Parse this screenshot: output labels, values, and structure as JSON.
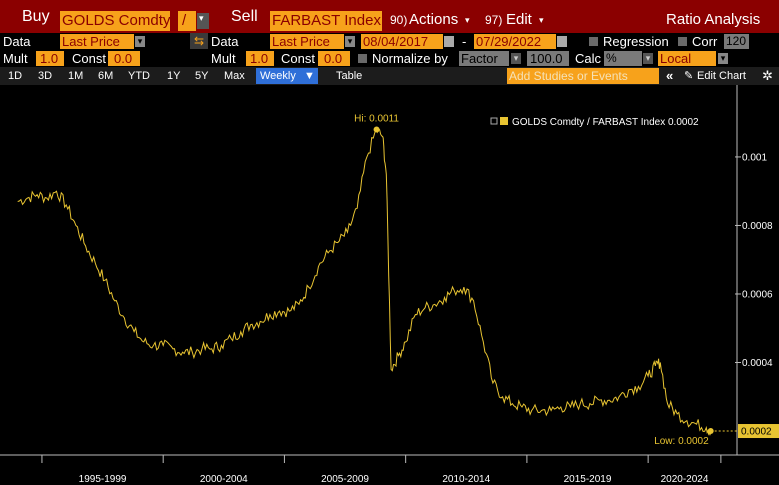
{
  "toolbar": {
    "buy_label": "Buy",
    "buy_security": "GOLDS Comdty",
    "operator": "/",
    "sell_label": "Sell",
    "sell_security": "FARBAST Index",
    "actions_num": "90)",
    "actions_label": "Actions",
    "edit_num": "97)",
    "edit_label": "Edit",
    "title": "Ratio Analysis"
  },
  "row2": {
    "data_label": "Data",
    "left_field": "Last Price",
    "swap_icon": "swap-arrows",
    "data_label2": "Data",
    "right_field": "Last Price",
    "start_date": "08/04/2017",
    "dash": "-",
    "end_date": "07/29/2022",
    "regression_label": "Regression",
    "corr_label": "Corr",
    "corr_value": "120"
  },
  "row3": {
    "mult_label": "Mult",
    "mult_value": "1.0",
    "const_label": "Const",
    "const_value": "0.0",
    "mult_label2": "Mult",
    "mult_value2": "1.0",
    "const_label2": "Const",
    "const_value2": "0.0",
    "normalize_label": "Normalize by",
    "normalize_value": "Factor",
    "factor_value": "100.0",
    "calc_label": "Calc",
    "calc_value": "%",
    "local_value": "Local"
  },
  "row4": {
    "ranges": [
      "1D",
      "3D",
      "1M",
      "6M",
      "YTD",
      "1Y",
      "5Y",
      "Max"
    ],
    "period": "Weekly",
    "table_label": "Table",
    "studies_placeholder": "Add Studies or Events",
    "collapse_icon": "double-chevron-left",
    "edit_chart_label": "Edit Chart",
    "settings_icon": "gear"
  },
  "colors": {
    "header_red": "#8b0000",
    "accent_orange": "#f7a21b",
    "series_yellow": "#e8c432",
    "active_tab_blue": "#2f6fd8"
  },
  "chart_data": {
    "type": "line",
    "series": [
      {
        "name": "GOLDS Comdty / FARBAST Index",
        "x": [
          1994.0,
          1994.4,
          1994.8,
          1995.2,
          1995.6,
          1996.0,
          1996.4,
          1996.8,
          1997.2,
          1997.6,
          1998.0,
          1998.4,
          1998.8,
          1999.2,
          1999.6,
          2000.0,
          2000.4,
          2000.8,
          2001.2,
          2001.6,
          2002.0,
          2002.4,
          2002.8,
          2003.2,
          2003.6,
          2004.0,
          2004.4,
          2004.8,
          2005.2,
          2005.6,
          2006.0,
          2006.4,
          2006.8,
          2007.2,
          2007.6,
          2008.0,
          2008.4,
          2008.8,
          2009.05,
          2009.2,
          2009.4,
          2009.7,
          2010.0,
          2010.4,
          2010.8,
          2011.2,
          2011.6,
          2012.0,
          2012.4,
          2012.8,
          2013.2,
          2013.6,
          2014.0,
          2014.4,
          2014.8,
          2015.2,
          2015.6,
          2016.0,
          2016.4,
          2016.8,
          2017.2,
          2017.6,
          2018.0,
          2018.4,
          2018.8,
          2019.2,
          2019.6,
          2020.0,
          2020.3,
          2020.5,
          2020.8,
          2021.2,
          2021.6,
          2022.0,
          2022.4,
          2022.58
        ],
        "values": [
          0.00087,
          0.00088,
          0.00089,
          0.00088,
          0.0009,
          0.00086,
          0.0008,
          0.00074,
          0.00069,
          0.00064,
          0.00058,
          0.00053,
          0.00049,
          0.00046,
          0.00045,
          0.00045,
          0.00044,
          0.00043,
          0.00043,
          0.00044,
          0.00044,
          0.00045,
          0.00047,
          0.00049,
          0.00051,
          0.00052,
          0.00054,
          0.00055,
          0.00055,
          0.00057,
          0.00062,
          0.00068,
          0.00072,
          0.00075,
          0.00078,
          0.00085,
          0.001,
          0.00108,
          0.00106,
          0.00095,
          0.00038,
          0.00042,
          0.00046,
          0.00054,
          0.00056,
          0.00057,
          0.00059,
          0.00061,
          0.00062,
          0.00058,
          0.00046,
          0.00034,
          0.0003,
          0.00028,
          0.00027,
          0.00026,
          0.00026,
          0.00026,
          0.00027,
          0.00027,
          0.00028,
          0.00028,
          0.00029,
          0.00029,
          0.0003,
          0.00032,
          0.00033,
          0.00036,
          0.00039,
          0.0004,
          0.00028,
          0.00025,
          0.00023,
          0.00022,
          0.00021,
          0.0002
        ]
      }
    ],
    "legend_text": "GOLDS Comdty / FARBAST Index 0.0002",
    "legend_placement": "top-right",
    "ylim": [
      0.00013,
      0.00121
    ],
    "y_ticks": [
      0.0004,
      0.0006,
      0.0008,
      0.001
    ],
    "y_tick_labels": [
      "0.0004",
      "0.0006",
      "0.0008",
      "0.001"
    ],
    "last_value_label": "0.0002",
    "x_range": [
      1993.6,
      2023.5
    ],
    "x_ticks": [
      1995,
      2000,
      2005,
      2010,
      2015,
      2020,
      2023
    ],
    "x_labels": [
      {
        "text": "1995-1999",
        "center": 1997.5
      },
      {
        "text": "2000-2004",
        "center": 2002.5
      },
      {
        "text": "2005-2009",
        "center": 2007.5
      },
      {
        "text": "2010-2014",
        "center": 2012.5
      },
      {
        "text": "2015-2019",
        "center": 2017.5
      },
      {
        "text": "2020-2024",
        "center": 2021.5
      }
    ],
    "annotations": [
      {
        "text": "Hi: 0.0011",
        "x": 2008.8,
        "y": 0.00108,
        "kind": "high"
      },
      {
        "text": "Low: 0.0002",
        "x": 2022.58,
        "y": 0.0002,
        "kind": "low"
      }
    ]
  }
}
